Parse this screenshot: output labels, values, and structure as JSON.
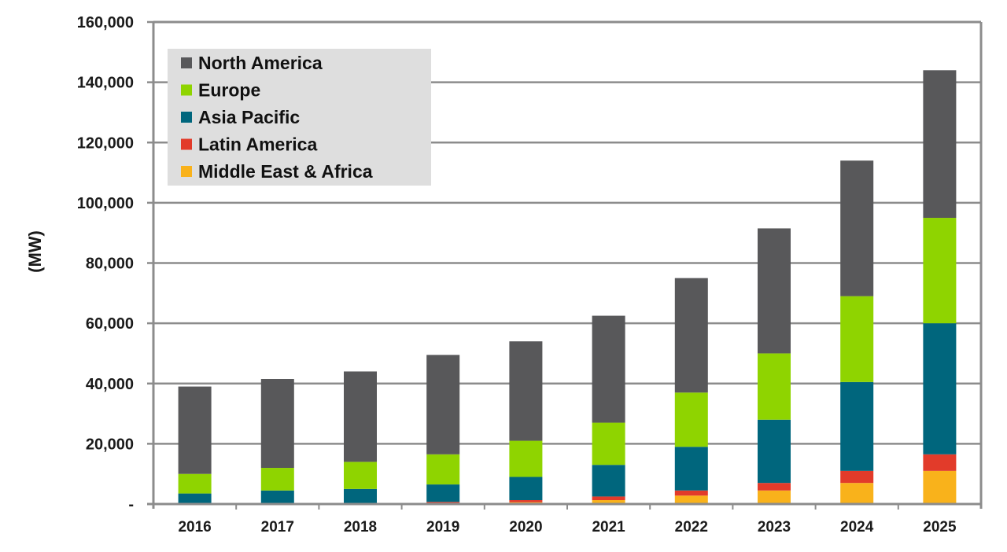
{
  "chart_data": {
    "type": "bar",
    "stacked": true,
    "title": "",
    "xlabel": "",
    "ylabel": "(MW)",
    "ylim": [
      0,
      160000
    ],
    "yticks": [
      0,
      20000,
      40000,
      60000,
      80000,
      100000,
      120000,
      140000,
      160000
    ],
    "ytick_labels": [
      "-",
      "20,000",
      "40,000",
      "60,000",
      "80,000",
      "100,000",
      "120,000",
      "140,000",
      "160,000"
    ],
    "grid": true,
    "legend_position": "top-left",
    "categories": [
      "2016",
      "2017",
      "2018",
      "2019",
      "2020",
      "2021",
      "2022",
      "2023",
      "2024",
      "2025"
    ],
    "series": [
      {
        "name": "Middle East & Africa",
        "color": "#f9b21b",
        "values": [
          0,
          0,
          0,
          300,
          600,
          1300,
          2800,
          4500,
          7000,
          11000
        ]
      },
      {
        "name": "Latin America",
        "color": "#e23b2a",
        "values": [
          0,
          0,
          0,
          400,
          700,
          1200,
          1700,
          2500,
          4000,
          5500
        ]
      },
      {
        "name": "Asia Pacific",
        "color": "#00667d",
        "values": [
          3500,
          4500,
          5000,
          5800,
          7700,
          10500,
          14500,
          21000,
          29500,
          43500
        ]
      },
      {
        "name": "Europe",
        "color": "#8fd400",
        "values": [
          6500,
          7500,
          9000,
          10000,
          12000,
          14000,
          18000,
          22000,
          28500,
          35000
        ]
      },
      {
        "name": "North America",
        "color": "#58585a",
        "values": [
          29000,
          29500,
          30000,
          33000,
          33000,
          35500,
          38000,
          41500,
          45000,
          49000
        ]
      }
    ],
    "legend_order": [
      "North America",
      "Europe",
      "Asia Pacific",
      "Latin America",
      "Middle East & Africa"
    ]
  }
}
